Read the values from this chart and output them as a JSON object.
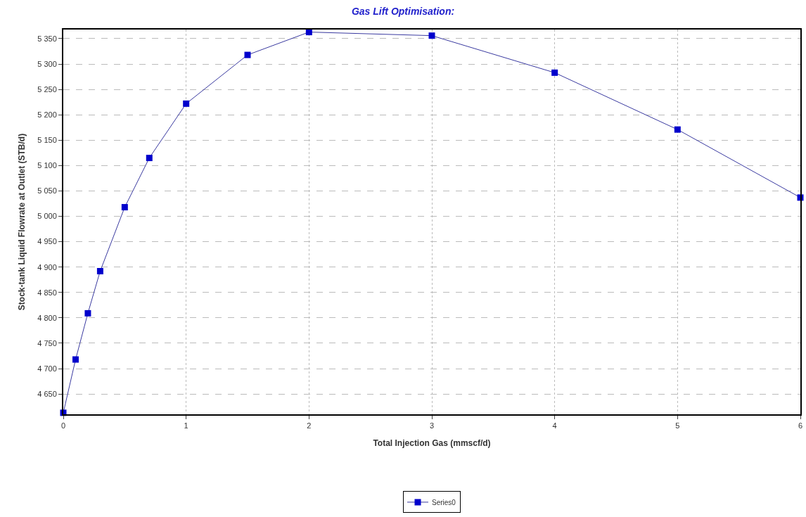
{
  "chart_data": {
    "type": "line",
    "title": "Gas Lift Optimisation:",
    "xlabel": "Total Injection Gas (mmscf/d)",
    "ylabel": "Stock-tank Liquid Flowrate at Outlet (STB/d)",
    "x": [
      0,
      0.1,
      0.2,
      0.3,
      0.5,
      0.7,
      1,
      1.5,
      2,
      3,
      4,
      5,
      6
    ],
    "series": [
      {
        "name": "Series0",
        "color": "#0000cc",
        "values": [
          4613,
          4718,
          4809,
          4892,
          5018,
          5115,
          5222,
          5318,
          5363,
          5356,
          5283,
          5171,
          5037
        ]
      }
    ],
    "xlim": [
      0,
      6
    ],
    "xticks": [
      0,
      1,
      2,
      3,
      4,
      5,
      6
    ],
    "ylim": [
      4610,
      5368
    ],
    "yticks": [
      {
        "value": 4650,
        "label": "4 650"
      },
      {
        "value": 4700,
        "label": "4 700"
      },
      {
        "value": 4750,
        "label": "4 750"
      },
      {
        "value": 4800,
        "label": "4 800"
      },
      {
        "value": 4850,
        "label": "4 850"
      },
      {
        "value": 4900,
        "label": "4 900"
      },
      {
        "value": 4950,
        "label": "4 950"
      },
      {
        "value": 5000,
        "label": "5 000"
      },
      {
        "value": 5050,
        "label": "5 050"
      },
      {
        "value": 5100,
        "label": "5 100"
      },
      {
        "value": 5150,
        "label": "5 150"
      },
      {
        "value": 5200,
        "label": "5 200"
      },
      {
        "value": 5250,
        "label": "5 250"
      },
      {
        "value": 5300,
        "label": "5 300"
      },
      {
        "value": 5350,
        "label": "5 350"
      }
    ],
    "grid": true,
    "legend": "bottom",
    "marker": "square",
    "line_style": "solid"
  }
}
